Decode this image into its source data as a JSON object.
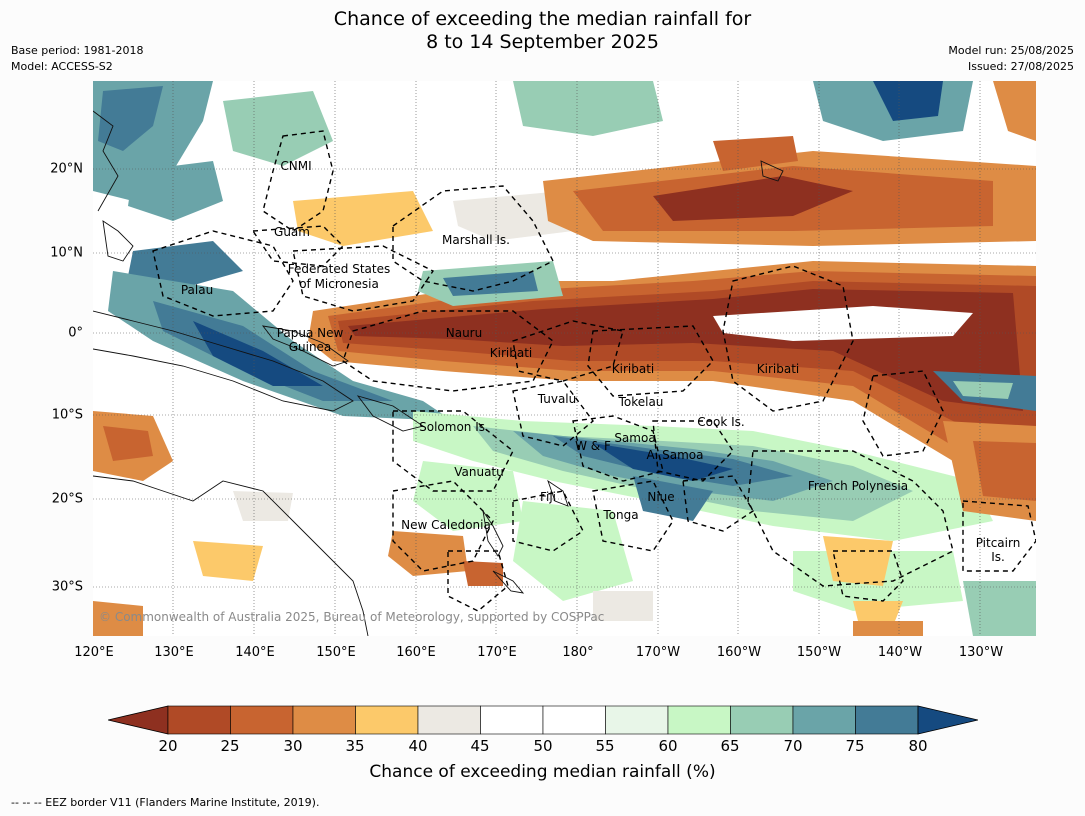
{
  "title": {
    "line1": "Chance of exceeding the median rainfall for",
    "line2": "8 to 14 September 2025"
  },
  "meta_left": {
    "base_period": "Base period: 1981-2018",
    "model": "Model: ACCESS-S2"
  },
  "meta_right": {
    "model_run": "Model run: 25/08/2025",
    "issued": "Issued: 27/08/2025"
  },
  "map": {
    "lat_labels": [
      "20°N",
      "10°N",
      "0°",
      "10°S",
      "20°S",
      "30°S"
    ],
    "lon_labels": [
      "120°E",
      "130°E",
      "140°E",
      "150°E",
      "160°E",
      "170°E",
      "180°",
      "170°W",
      "160°W",
      "150°W",
      "140°W",
      "130°W"
    ],
    "place_labels": {
      "cnmi": "CNMI",
      "guam": "Guam",
      "marshall": "Marshall Is.",
      "fsm_line1": "Federated States",
      "fsm_line2": "of Micronesia",
      "palau": "Palau",
      "png_line1": "Papua New",
      "png_line2": "Guinea",
      "nauru": "Nauru",
      "kiribati_west": "Kiribati",
      "kiribati_central": "Kiribati",
      "kiribati_east": "Kiribati",
      "tuvalu": "Tuvalu",
      "tokelau": "Tokelau",
      "cook": "Cook Is.",
      "solomon": "Solomon Is.",
      "samoa": "Samoa",
      "wf": "W & F",
      "asamoa": "A. Samoa",
      "vanuatu": "Vanuatu",
      "fiji": "Fiji",
      "niue": "Niue",
      "tonga": "Tonga",
      "french_polynesia": "French Polynesia",
      "new_caledonia": "New Caledonia",
      "pitcairn_line1": "Pitcairn",
      "pitcairn_line2": "Is."
    },
    "copyright": "© Commonwealth of Australia 2025, Bureau of Meteorology, supported by COSPPac"
  },
  "colorbar": {
    "ticks": [
      "20",
      "25",
      "30",
      "35",
      "40",
      "45",
      "50",
      "55",
      "60",
      "65",
      "70",
      "75",
      "80"
    ],
    "colors": [
      "#b04a26",
      "#c86430",
      "#de8c45",
      "#fcc96a",
      "#ece9e3",
      "#ffffff",
      "#ffffff",
      "#e8f6e8",
      "#c8f7c5",
      "#98cdb4",
      "#6aa4a8",
      "#437b96"
    ],
    "under_color": "#8e3020",
    "over_color": "#154a80",
    "title": "Chance of exceeding median rainfall (%)"
  },
  "footnote": "--  --  -- EEZ border V11 (Flanders Marine Institute, 2019)."
}
